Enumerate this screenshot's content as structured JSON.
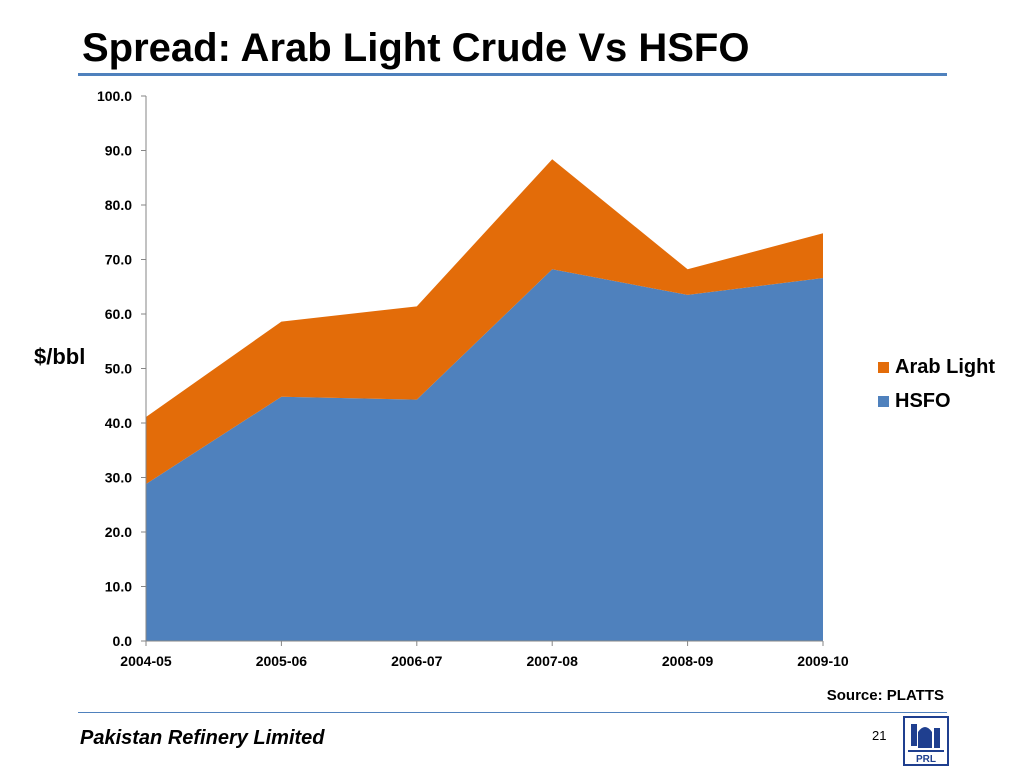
{
  "slide": {
    "title": "Spread: Arab Light Crude Vs HSFO",
    "source": "Source: PLATTS",
    "company": "Pakistan Refinery Limited",
    "page_number": "21",
    "logo_text": "PRL"
  },
  "colors": {
    "accent": "#4f81bd",
    "hsfo": "#4f81bd",
    "arab_light": "#e36c09",
    "logo": "#1f3f8f"
  },
  "chart_data": {
    "type": "area",
    "stacked": true,
    "title": "",
    "xlabel": "",
    "ylabel": "$/bbl",
    "ylim": [
      0,
      100
    ],
    "yticks": [
      "0.0",
      "10.0",
      "20.0",
      "30.0",
      "40.0",
      "50.0",
      "60.0",
      "70.0",
      "80.0",
      "90.0",
      "100.0"
    ],
    "categories": [
      "2004-05",
      "2005-06",
      "2006-07",
      "2007-08",
      "2008-09",
      "2009-10"
    ],
    "series": [
      {
        "name": "HSFO",
        "values": [
          28.8,
          44.8,
          44.3,
          68.2,
          63.5,
          66.6
        ],
        "color": "#4f81bd"
      },
      {
        "name": "Arab Light",
        "values": [
          12.3,
          13.8,
          17.1,
          20.2,
          4.7,
          8.2
        ],
        "color": "#e36c09"
      }
    ],
    "legend_position": "right",
    "legend_order": [
      "Arab Light",
      "HSFO"
    ],
    "grid": false
  }
}
